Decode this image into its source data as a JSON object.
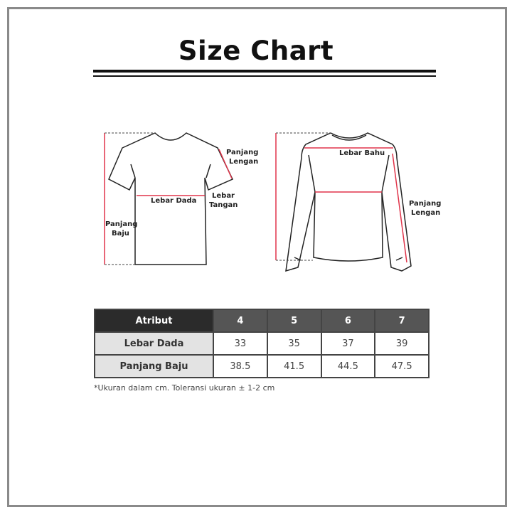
{
  "title": "Size Chart",
  "diagram": {
    "tshirt_labels": {
      "panjang_lengan": [
        "Panjang",
        "Lengan"
      ],
      "lebar_tangan": [
        "Lebar",
        "Tangan"
      ],
      "lebar_dada": "Lebar Dada",
      "panjang_baju": [
        "Panjang",
        "Baju"
      ]
    },
    "longsleeve_labels": {
      "lebar_bahu": "Lebar Bahu",
      "panjang_lengan": [
        "Panjang",
        "Lengan"
      ]
    },
    "colors": {
      "measure_line": "#e0344a",
      "outline": "#222222"
    }
  },
  "table": {
    "header": [
      "Atribut",
      "4",
      "5",
      "6",
      "7"
    ],
    "rows": [
      {
        "label": "Lebar Dada",
        "values": [
          "33",
          "35",
          "37",
          "39"
        ]
      },
      {
        "label": "Panjang Baju",
        "values": [
          "38.5",
          "41.5",
          "44.5",
          "47.5"
        ]
      }
    ]
  },
  "note": "*Ukuran dalam cm. Toleransi ukuran ± 1-2 cm"
}
